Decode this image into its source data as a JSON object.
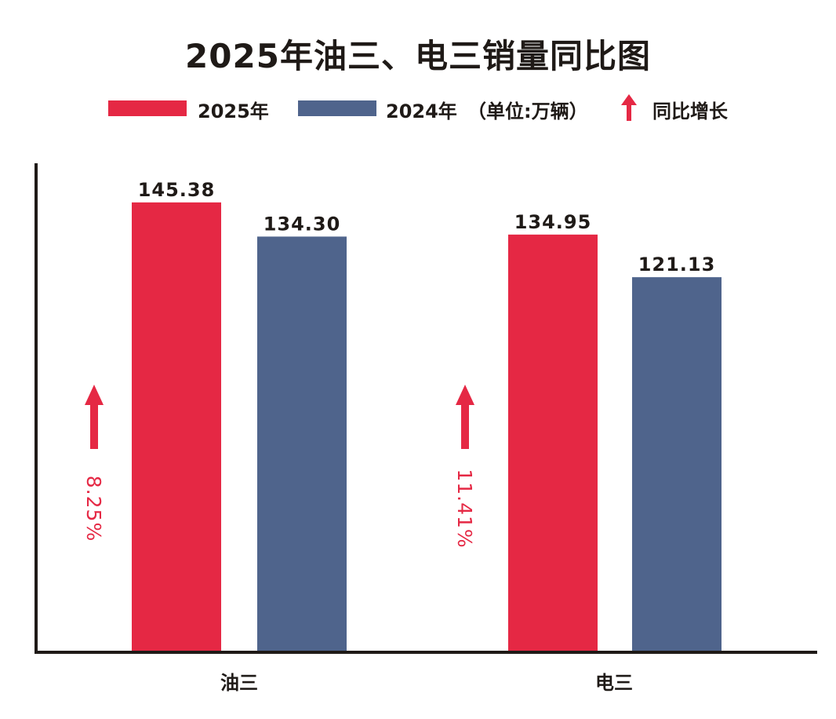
{
  "chart_data": {
    "type": "bar",
    "title": "2025年油三、电三销量同比图",
    "unit_note": "（单位:万辆）",
    "growth_legend": "同比增长",
    "categories": [
      "油三",
      "电三"
    ],
    "series": [
      {
        "name": "2025年",
        "values": [
          145.38,
          134.95
        ],
        "labels": [
          "145.38",
          "134.95"
        ],
        "color": "#e52844"
      },
      {
        "name": "2024年",
        "values": [
          134.3,
          121.13
        ],
        "labels": [
          "134.30",
          "121.13"
        ],
        "color": "#4f648c"
      }
    ],
    "growth": [
      "8.25%",
      "11.41%"
    ],
    "growth_color": "#e52844",
    "ylim": [
      0,
      160
    ],
    "grid": false,
    "legend_position": "top"
  }
}
